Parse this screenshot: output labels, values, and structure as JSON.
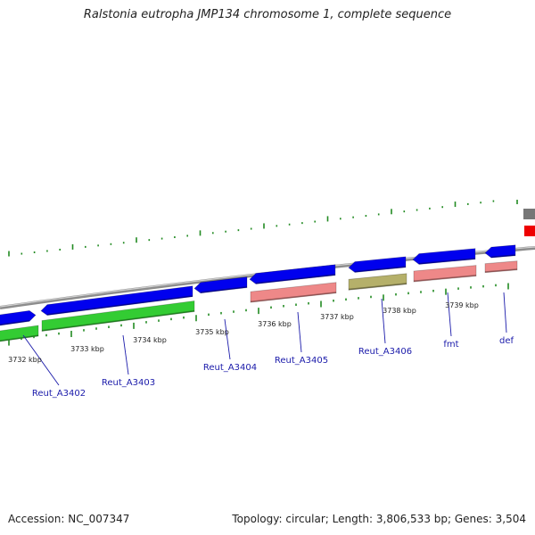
{
  "title": "Ralstonia eutropha JMP134 chromosome 1, complete sequence",
  "footer": {
    "accession": "Accession: NC_007347",
    "summary": "Topology: circular; Length: 3,806,533 bp; Genes: 3,504"
  },
  "scale_labels": [
    "3732 kbp",
    "3733 kbp",
    "3734 kbp",
    "3735 kbp",
    "3736 kbp",
    "3737 kbp",
    "3738 kbp",
    "3739 kbp"
  ],
  "gene_labels": [
    "Reut_A3402",
    "Reut_A3403",
    "Reut_A3404",
    "Reut_A3405",
    "Reut_A3406",
    "fmt",
    "def"
  ],
  "colors": {
    "cds_blue": "#0000ee",
    "rna_green": "#33cc33",
    "pink": "#ee8888",
    "olive": "#b5b06a",
    "red": "#ee0000",
    "gray": "#777777",
    "tick_green": "#228b22",
    "label_blue": "#1a1aaa"
  }
}
